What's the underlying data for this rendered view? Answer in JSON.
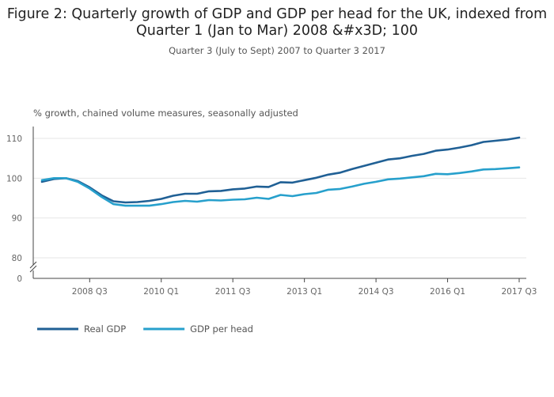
{
  "title": "Figure 2: Quarterly growth of GDP and GDP per head for the UK, indexed from Quarter 1 (Jan to Mar) 2008 &#x3D; 100",
  "subtitle": "Quarter 3 (July to Sept) 2007 to Quarter 3 2017",
  "colors": {
    "series_1": "#206095",
    "series_2": "#27a0cc",
    "grid": "#e6e6e6",
    "axis": "#444444"
  },
  "chart_data": {
    "type": "line",
    "ylabel": "% growth, chained volume measures, seasonally adjusted",
    "xlabel": "",
    "ylim": [
      0,
      110
    ],
    "axis_break": "between 0 and 80",
    "y_ticks": [
      0,
      80,
      90,
      100,
      110
    ],
    "x_ticks": [
      "2008 Q3",
      "2010 Q1",
      "2011 Q3",
      "2013 Q1",
      "2014 Q3",
      "2016 Q1",
      "2017 Q3"
    ],
    "grid": true,
    "legend_position": "bottom-left",
    "x": [
      "2007 Q3",
      "2007 Q4",
      "2008 Q1",
      "2008 Q2",
      "2008 Q3",
      "2008 Q4",
      "2009 Q1",
      "2009 Q2",
      "2009 Q3",
      "2009 Q4",
      "2010 Q1",
      "2010 Q2",
      "2010 Q3",
      "2010 Q4",
      "2011 Q1",
      "2011 Q2",
      "2011 Q3",
      "2011 Q4",
      "2012 Q1",
      "2012 Q2",
      "2012 Q3",
      "2012 Q4",
      "2013 Q1",
      "2013 Q2",
      "2013 Q3",
      "2013 Q4",
      "2014 Q1",
      "2014 Q2",
      "2014 Q3",
      "2014 Q4",
      "2015 Q1",
      "2015 Q2",
      "2015 Q3",
      "2015 Q4",
      "2016 Q1",
      "2016 Q2",
      "2016 Q3",
      "2016 Q4",
      "2017 Q1",
      "2017 Q2",
      "2017 Q3"
    ],
    "series": [
      {
        "name": "Real GDP",
        "values": [
          99.1,
          99.8,
          100.0,
          99.3,
          97.7,
          95.7,
          94.2,
          93.9,
          94.0,
          94.3,
          94.8,
          95.6,
          96.1,
          96.1,
          96.7,
          96.8,
          97.2,
          97.4,
          97.9,
          97.8,
          99.0,
          98.9,
          99.5,
          100.1,
          100.9,
          101.4,
          102.3,
          103.1,
          103.9,
          104.7,
          105.0,
          105.6,
          106.1,
          106.9,
          107.2,
          107.7,
          108.3,
          109.1,
          109.4,
          109.7,
          110.2
        ]
      },
      {
        "name": "GDP per head",
        "values": [
          99.5,
          100.0,
          100.0,
          99.1,
          97.4,
          95.3,
          93.5,
          93.1,
          93.1,
          93.1,
          93.5,
          94.0,
          94.3,
          94.1,
          94.5,
          94.4,
          94.6,
          94.7,
          95.1,
          94.8,
          95.8,
          95.5,
          96.0,
          96.3,
          97.1,
          97.3,
          97.9,
          98.6,
          99.1,
          99.7,
          99.9,
          100.2,
          100.5,
          101.1,
          101.0,
          101.3,
          101.7,
          102.2,
          102.3,
          102.5,
          102.7
        ]
      }
    ]
  }
}
